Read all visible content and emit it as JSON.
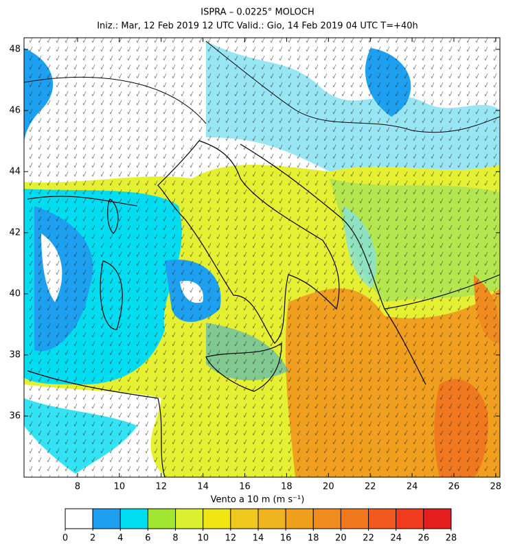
{
  "header": {
    "title": "ISPRA – 0.0225° MOLOCH",
    "subtitle": "Iniz.: Mar, 12 Feb 2019   12 UTC   Valid.: Gio, 14 Feb 2019   04 UTC   T=+40h"
  },
  "map": {
    "lon_range": [
      5.44,
      28.2
    ],
    "lat_range": [
      34.0,
      48.38
    ],
    "lon_ticks": [
      8,
      10,
      12,
      14,
      16,
      18,
      20,
      22,
      24,
      26,
      28
    ],
    "lat_ticks": [
      36,
      38,
      40,
      42,
      44,
      46,
      48
    ]
  },
  "colorbar": {
    "label": "Vento a 10 m (m s⁻¹)",
    "levels": [
      0,
      2,
      4,
      6,
      8,
      10,
      12,
      14,
      16,
      18,
      20,
      22,
      24,
      26,
      28
    ],
    "colors": [
      "#ffffff",
      "#1ea0f0",
      "#00dcf0",
      "#a0e632",
      "#dcf032",
      "#f0e614",
      "#f0c81e",
      "#f0b41e",
      "#f0a01e",
      "#f08c1e",
      "#f0781e",
      "#f05a1e",
      "#f03c1e",
      "#e61e1e"
    ]
  }
}
